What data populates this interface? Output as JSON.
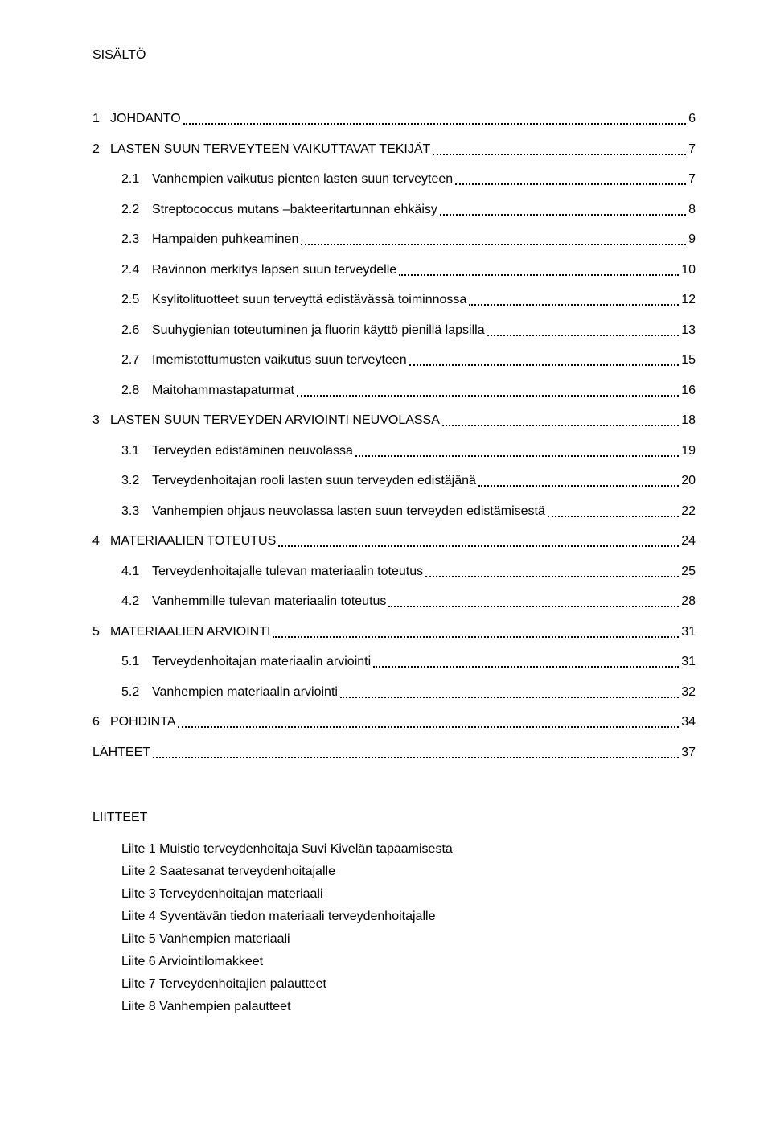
{
  "heading": "SISÄLTÖ",
  "toc": [
    {
      "level": 1,
      "num": "1",
      "text": "JOHDANTO",
      "page": "6"
    },
    {
      "level": 1,
      "num": "2",
      "text": "LASTEN SUUN TERVEYTEEN VAIKUTTAVAT TEKIJÄT",
      "page": "7"
    },
    {
      "level": 2,
      "num": "2.1",
      "text": "Vanhempien vaikutus pienten lasten suun terveyteen",
      "page": "7"
    },
    {
      "level": 2,
      "num": "2.2",
      "text": "Streptococcus mutans –bakteeritartunnan ehkäisy",
      "page": "8"
    },
    {
      "level": 2,
      "num": "2.3",
      "text": "Hampaiden puhkeaminen",
      "page": "9"
    },
    {
      "level": 2,
      "num": "2.4",
      "text": "Ravinnon merkitys lapsen suun terveydelle",
      "page": "10"
    },
    {
      "level": 2,
      "num": "2.5",
      "text": "Ksylitolituotteet suun terveyttä edistävässä toiminnossa",
      "page": "12"
    },
    {
      "level": 2,
      "num": "2.6",
      "text": "Suuhygienian toteutuminen ja fluorin käyttö pienillä lapsilla",
      "page": "13"
    },
    {
      "level": 2,
      "num": "2.7",
      "text": "Imemistottumusten vaikutus suun terveyteen",
      "page": "15"
    },
    {
      "level": 2,
      "num": "2.8",
      "text": "Maitohammastapaturmat",
      "page": "16"
    },
    {
      "level": 1,
      "num": "3",
      "text": "LASTEN SUUN TERVEYDEN ARVIOINTI NEUVOLASSA",
      "page": "18"
    },
    {
      "level": 2,
      "num": "3.1",
      "text": "Terveyden edistäminen neuvolassa",
      "page": "19"
    },
    {
      "level": 2,
      "num": "3.2",
      "text": "Terveydenhoitajan rooli lasten suun terveyden edistäjänä",
      "page": "20"
    },
    {
      "level": 2,
      "num": "3.3",
      "text": "Vanhempien ohjaus neuvolassa lasten suun terveyden edistämisestä",
      "page": "22"
    },
    {
      "level": 1,
      "num": "4",
      "text": "MATERIAALIEN TOTEUTUS",
      "page": "24"
    },
    {
      "level": 2,
      "num": "4.1",
      "text": "Terveydenhoitajalle tulevan materiaalin toteutus",
      "page": "25"
    },
    {
      "level": 2,
      "num": "4.2",
      "text": "Vanhemmille tulevan materiaalin toteutus",
      "page": "28"
    },
    {
      "level": 1,
      "num": "5",
      "text": "MATERIAALIEN ARVIOINTI",
      "page": "31"
    },
    {
      "level": 2,
      "num": "5.1",
      "text": "Terveydenhoitajan materiaalin arviointi",
      "page": "31"
    },
    {
      "level": 2,
      "num": "5.2",
      "text": "Vanhempien materiaalin arviointi",
      "page": "32"
    },
    {
      "level": 1,
      "num": "6",
      "text": "POHDINTA",
      "page": "34"
    },
    {
      "level": 0,
      "num": "",
      "text": "LÄHTEET",
      "page": "37"
    }
  ],
  "attachments_heading": "LIITTEET",
  "attachments": [
    "Liite 1 Muistio terveydenhoitaja Suvi Kivelän tapaamisesta",
    "Liite 2 Saatesanat terveydenhoitajalle",
    "Liite 3 Terveydenhoitajan materiaali",
    "Liite 4 Syventävän tiedon materiaali terveydenhoitajalle",
    "Liite 5 Vanhempien materiaali",
    "Liite 6 Arviointilomakkeet",
    "Liite 7 Terveydenhoitajien palautteet",
    "Liite 8 Vanhempien palautteet"
  ]
}
